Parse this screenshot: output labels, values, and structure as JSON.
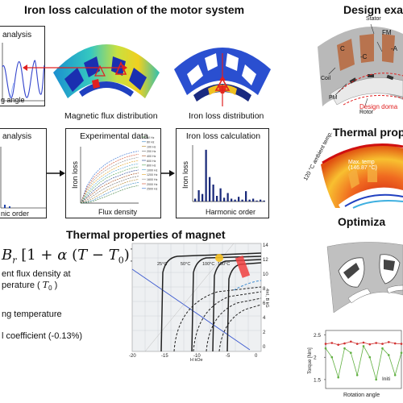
{
  "section_iron_loss": {
    "title": "Iron loss calculation of the motor system",
    "box1_title": "analysis",
    "box1_axis": "g angle",
    "flux_caption": "Magnetic flux distribution",
    "loss_caption": "Iron loss distribution",
    "box2_title": "analysis",
    "box2_axis": "nic order",
    "experimental": {
      "title": "Experimental data",
      "ylabel": "Iron loss",
      "xlabel": "Flux density",
      "legend": [
        "50 Hz",
        "60 Hz",
        "100 Hz",
        "200 Hz",
        "400 Hz",
        "600 Hz",
        "800 Hz",
        "1000 Hz",
        "1200 Hz",
        "1600 Hz",
        "2000 Hz",
        "2500 Hz"
      ]
    },
    "iron_loss_box": {
      "title": "Iron loss calculation",
      "ylabel": "Iron loss",
      "xlabel": "Harmonic order"
    }
  },
  "section_design": {
    "title": "Design exa",
    "labels": {
      "stator": "Stator",
      "fm": "FM",
      "c": "C",
      "minus_c": "-C",
      "minus_a": "-A",
      "coil": "Coil",
      "pm": "PM",
      "rotor": "Rotor",
      "design_domain": "Design doma"
    }
  },
  "section_thermal_prop": {
    "title": "Thermal prop",
    "max_temp_line1": "Max. temp",
    "max_temp_line2": "(146.87 °C)",
    "ambient": "120 °C ambient temp."
  },
  "section_magnet": {
    "title": "Thermal properties of magnet",
    "line1": "ent flux density at",
    "line2": "perature (",
    "t0": "T",
    "t0_sub": "0",
    "line3": "ng temperature",
    "line4": "l coefficient (-0.13%)",
    "chart": {
      "temps": [
        "25°C",
        "50°C",
        "100°C",
        "150°C"
      ],
      "x_ticks": [
        "-20",
        "-15",
        "-10",
        "-5",
        "0"
      ],
      "right_ticks": [
        "14",
        "12",
        "10",
        "8",
        "6",
        "4",
        "2",
        "0"
      ],
      "x_unit": "H  kOe",
      "right_axis": "4πI, B  kG"
    }
  },
  "section_optimization": {
    "title": "Optimiza",
    "chart": {
      "ylabel": "Torque [Nm]",
      "xlabel": "Rotation angle",
      "yticks": [
        "2.5",
        "2",
        "1.5"
      ],
      "initial_label": "Initi"
    }
  },
  "colors": {
    "heat_blue": "#1a2fb0",
    "heat_red": "#e83020",
    "stator_gray": "#b9b9b9",
    "coil_brown": "#b8734e",
    "accent_red": "#e02020"
  },
  "chart_data": [
    {
      "type": "bar",
      "title": "Iron loss calculation",
      "xlabel": "Harmonic order",
      "ylabel": "Iron loss",
      "categories": [
        "1",
        "2",
        "3",
        "4",
        "5",
        "6",
        "7",
        "8",
        "9",
        "10",
        "11",
        "12",
        "13",
        "14",
        "15",
        "16",
        "17",
        "18",
        "19",
        "20"
      ],
      "values": [
        3,
        12,
        8,
        55,
        26,
        18,
        6,
        14,
        4,
        9,
        3,
        2,
        5,
        2,
        11,
        2,
        3,
        1,
        2,
        1
      ]
    },
    {
      "type": "line",
      "title": "Experimental data",
      "xlabel": "Flux density",
      "ylabel": "Iron loss",
      "x": [
        0,
        0.2,
        0.4,
        0.6,
        0.8,
        1.0,
        1.2,
        1.4,
        1.6,
        1.8
      ],
      "series": [
        {
          "name": "2500 Hz",
          "values": [
            0,
            28,
            44,
            55,
            63,
            69,
            74,
            78,
            81,
            83
          ]
        },
        {
          "name": "2000 Hz",
          "values": [
            0,
            25,
            40,
            50,
            58,
            64,
            69,
            73,
            76,
            78
          ]
        },
        {
          "name": "1600 Hz",
          "values": [
            0,
            22,
            36,
            46,
            53,
            59,
            64,
            68,
            71,
            73
          ]
        },
        {
          "name": "1200 Hz",
          "values": [
            0,
            19,
            32,
            41,
            48,
            54,
            59,
            63,
            66,
            68
          ]
        },
        {
          "name": "1000 Hz",
          "values": [
            0,
            16,
            28,
            37,
            44,
            50,
            54,
            58,
            61,
            63
          ]
        },
        {
          "name": "800 Hz",
          "values": [
            0,
            13,
            24,
            33,
            40,
            45,
            49,
            53,
            56,
            58
          ]
        },
        {
          "name": "600 Hz",
          "values": [
            0,
            10,
            20,
            28,
            35,
            40,
            44,
            48,
            51,
            53
          ]
        },
        {
          "name": "400 Hz",
          "values": [
            0,
            8,
            16,
            24,
            30,
            35,
            39,
            43,
            46,
            48
          ]
        },
        {
          "name": "200 Hz",
          "values": [
            0,
            5,
            12,
            19,
            25,
            30,
            34,
            38,
            41,
            43
          ]
        },
        {
          "name": "100 Hz",
          "values": [
            0,
            3,
            8,
            14,
            20,
            25,
            29,
            33,
            36,
            38
          ]
        },
        {
          "name": "60 Hz",
          "values": [
            0,
            2,
            5,
            10,
            15,
            20,
            24,
            28,
            31,
            33
          ]
        },
        {
          "name": "50 Hz",
          "values": [
            0,
            1,
            3,
            7,
            11,
            15,
            19,
            23,
            26,
            28
          ]
        }
      ]
    },
    {
      "type": "line",
      "title": "Optimization torque",
      "xlabel": "Rotation angle",
      "ylabel": "Torque [Nm]",
      "ylim": [
        1.3,
        2.6
      ],
      "x": [
        0,
        10,
        20,
        30,
        40,
        50,
        60,
        70,
        80,
        90,
        100,
        110,
        120
      ],
      "series": [
        {
          "name": "Optimized",
          "values": [
            2.3,
            2.32,
            2.28,
            2.31,
            2.35,
            2.3,
            2.33,
            2.29,
            2.32,
            2.3,
            2.34,
            2.31,
            2.3
          ]
        },
        {
          "name": "Initial",
          "values": [
            2.2,
            2.0,
            1.55,
            2.2,
            2.1,
            1.6,
            2.25,
            2.0,
            1.5,
            2.2,
            2.05,
            1.6,
            2.1
          ]
        }
      ]
    }
  ]
}
